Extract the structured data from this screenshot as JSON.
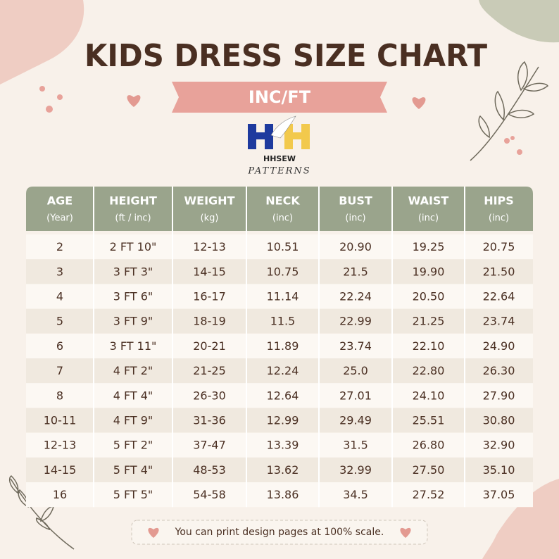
{
  "header": {
    "title": "KIDS DRESS SIZE CHART",
    "subtitle": "INC/FT"
  },
  "logo": {
    "name": "HHSEW",
    "tagline": "PATTERNS"
  },
  "table": {
    "columns": [
      {
        "label": "AGE",
        "unit": "(Year)"
      },
      {
        "label": "HEIGHT",
        "unit": "(ft / inc)"
      },
      {
        "label": "WEIGHT",
        "unit": "(kg)"
      },
      {
        "label": "NECK",
        "unit": "(inc)"
      },
      {
        "label": "BUST",
        "unit": "(inc)"
      },
      {
        "label": "WAIST",
        "unit": "(inc)"
      },
      {
        "label": "HIPS",
        "unit": "(inc)"
      }
    ],
    "rows": [
      [
        "2",
        "2 FT 10\"",
        "12-13",
        "10.51",
        "20.90",
        "19.25",
        "20.75"
      ],
      [
        "3",
        "3 FT 3\"",
        "14-15",
        "10.75",
        "21.5",
        "19.90",
        "21.50"
      ],
      [
        "4",
        "3 FT 6\"",
        "16-17",
        "11.14",
        "22.24",
        "20.50",
        "22.64"
      ],
      [
        "5",
        "3 FT 9\"",
        "18-19",
        "11.5",
        "22.99",
        "21.25",
        "23.74"
      ],
      [
        "6",
        "3 FT 11\"",
        "20-21",
        "11.89",
        "23.74",
        "22.10",
        "24.90"
      ],
      [
        "7",
        "4 FT 2\"",
        "21-25",
        "12.24",
        "25.0",
        "22.80",
        "26.30"
      ],
      [
        "8",
        "4 FT 4\"",
        "26-30",
        "12.64",
        "27.01",
        "24.10",
        "27.90"
      ],
      [
        "10-11",
        "4 FT 9\"",
        "31-36",
        "12.99",
        "29.49",
        "25.51",
        "30.80"
      ],
      [
        "12-13",
        "5 FT 2\"",
        "37-47",
        "13.39",
        "31.5",
        "26.80",
        "32.90"
      ],
      [
        "14-15",
        "5 FT 4\"",
        "48-53",
        "13.62",
        "32.99",
        "27.50",
        "35.10"
      ],
      [
        "16",
        "5 FT 5\"",
        "54-58",
        "13.86",
        "34.5",
        "27.52",
        "37.05"
      ]
    ]
  },
  "footer": {
    "note": "You can print design pages at 100% scale."
  }
}
